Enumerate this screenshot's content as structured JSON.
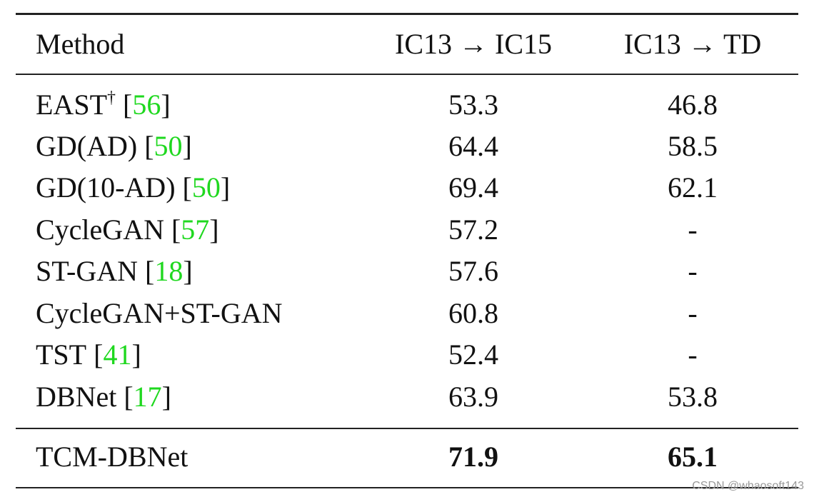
{
  "table": {
    "header": [
      "Method",
      "IC13 → IC15",
      "IC13 → TD"
    ],
    "rows": [
      {
        "method": "EAST",
        "sup": "†",
        "cite": [
          "[",
          "56",
          "]"
        ],
        "values": [
          53.3,
          46.8
        ]
      },
      {
        "method": "GD(AD)",
        "cite": [
          "[",
          "50",
          "]"
        ],
        "values": [
          64.4,
          58.5
        ]
      },
      {
        "method": "GD(10-AD)",
        "cite": [
          "[",
          "50",
          "]"
        ],
        "values": [
          69.4,
          62.1
        ]
      },
      {
        "method": "CycleGAN",
        "cite": [
          "[",
          "57",
          "]"
        ],
        "values": [
          57.2,
          "-"
        ]
      },
      {
        "method": "ST-GAN",
        "cite": [
          "[",
          "18",
          "]"
        ],
        "values": [
          57.6,
          "-"
        ]
      },
      {
        "method": "CycleGAN+ST-GAN",
        "values": [
          60.8,
          "-"
        ]
      },
      {
        "method": "TST",
        "cite": [
          "[",
          "41",
          "]"
        ],
        "values": [
          52.4,
          "-"
        ]
      },
      {
        "method": "DBNet",
        "cite": [
          "[",
          "17",
          "]"
        ],
        "values": [
          63.9,
          53.8
        ]
      },
      {
        "method": "TCM-DBNet",
        "values": [
          71.9,
          65.1
        ],
        "bold_values": true
      }
    ]
  },
  "watermark": "CSDN @whaosoft143"
}
